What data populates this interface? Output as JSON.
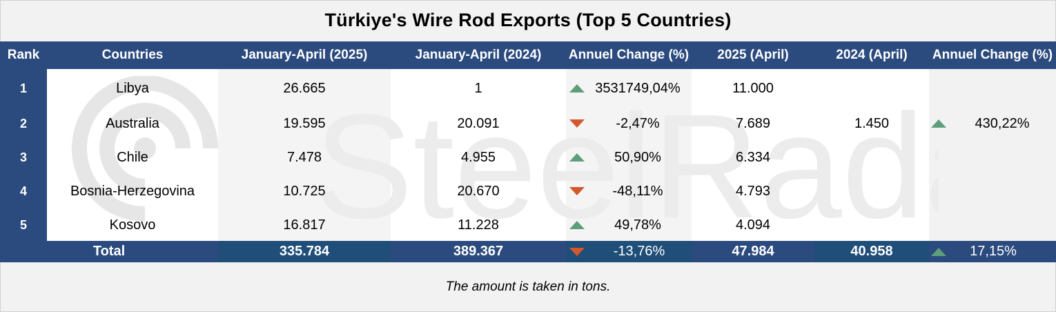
{
  "title": "Türkiye's Wire Rod Exports (Top 5 Countries)",
  "watermark_text": "SteelRadar",
  "colors": {
    "header_bg": "#2b4a7e",
    "total_bg": "#1f4e79",
    "up": "#5e9e7a",
    "down": "#d4582d"
  },
  "headers": [
    "Rank",
    "Countries",
    "January-April (2025)",
    "January-April (2024)",
    "Annuel Change (%)",
    "2025 (April)",
    "2024 (April)",
    "Annuel Change (%)"
  ],
  "rows": [
    {
      "rank": "1",
      "country": "Libya",
      "ja2025": "26.665",
      "ja2024": "1",
      "change": "3531749,04%",
      "change_dir": "up",
      "apr2025": "11.000",
      "apr2024": "",
      "apr_change": "",
      "apr_change_dir": ""
    },
    {
      "rank": "2",
      "country": "Australia",
      "ja2025": "19.595",
      "ja2024": "20.091",
      "change": "-2,47%",
      "change_dir": "down",
      "apr2025": "7.689",
      "apr2024": "1.450",
      "apr_change": "430,22%",
      "apr_change_dir": "up"
    },
    {
      "rank": "3",
      "country": "Chile",
      "ja2025": "7.478",
      "ja2024": "4.955",
      "change": "50,90%",
      "change_dir": "up",
      "apr2025": "6.334",
      "apr2024": "",
      "apr_change": "",
      "apr_change_dir": ""
    },
    {
      "rank": "4",
      "country": "Bosnia-Herzegovina",
      "ja2025": "10.725",
      "ja2024": "20.670",
      "change": "-48,11%",
      "change_dir": "down",
      "apr2025": "4.793",
      "apr2024": "",
      "apr_change": "",
      "apr_change_dir": ""
    },
    {
      "rank": "5",
      "country": "Kosovo",
      "ja2025": "16.817",
      "ja2024": "11.228",
      "change": "49,78%",
      "change_dir": "up",
      "apr2025": "4.094",
      "apr2024": "",
      "apr_change": "",
      "apr_change_dir": ""
    }
  ],
  "total": {
    "label": "Total",
    "ja2025": "335.784",
    "ja2024": "389.367",
    "change": "-13,76%",
    "change_dir": "down",
    "apr2025": "47.984",
    "apr2024": "40.958",
    "apr_change": "17,15%",
    "apr_change_dir": "up"
  },
  "footnote": "The amount is taken in tons."
}
